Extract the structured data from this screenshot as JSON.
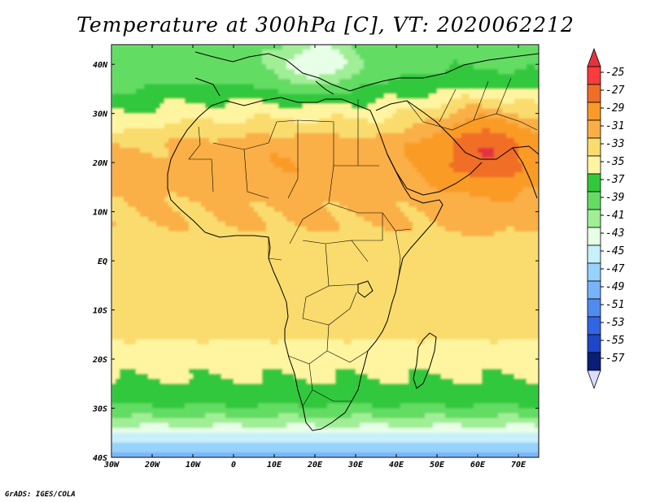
{
  "title": "Temperature at 300hPa [C], VT: 2020062212",
  "credit": "GrADS: IGES/COLA",
  "map": {
    "lon_labels": [
      "30W",
      "20W",
      "10W",
      "0",
      "10E",
      "20E",
      "30E",
      "40E",
      "50E",
      "60E",
      "70E"
    ],
    "lat_labels": [
      "40N",
      "30N",
      "20N",
      "10N",
      "EQ",
      "10S",
      "20S",
      "30S",
      "40S"
    ],
    "lon_range": [
      -30,
      75
    ],
    "lat_range": [
      -40,
      44
    ]
  },
  "colorbar": {
    "labels": [
      "-25",
      "-27",
      "-29",
      "-31",
      "-33",
      "-35",
      "-37",
      "-39",
      "-41",
      "-43",
      "-45",
      "-47",
      "-49",
      "-51",
      "-53",
      "-55",
      "-57"
    ],
    "colors": [
      "#fa3c3c",
      "#f06e28",
      "#fa9b28",
      "#faaf46",
      "#fadc6e",
      "#fff5a0",
      "#32c83c",
      "#64dc64",
      "#a0ee96",
      "#e6ffe6",
      "#c8f0fa",
      "#96d2fa",
      "#78b4fa",
      "#508cf0",
      "#3264e6",
      "#1e46c8",
      "#0a1e78"
    ],
    "top_arrow_color": "#e6323c",
    "bottom_arrow_color": "#dcdcff"
  },
  "chart_data": {
    "type": "heatmap",
    "title": "Temperature at 300hPa [C], VT: 2020062212",
    "xlabel": "",
    "ylabel": "",
    "xlim": [
      -30,
      75
    ],
    "ylim": [
      -40,
      44
    ],
    "unit": "C",
    "levels": [
      -57,
      -55,
      -53,
      -51,
      -49,
      -47,
      -45,
      -43,
      -41,
      -39,
      -37,
      -35,
      -33,
      -31,
      -29,
      -27,
      -25
    ],
    "zonal_profile": {
      "lat": [
        -40,
        -36,
        -32,
        -28,
        -24,
        -20,
        -16,
        -12,
        -8,
        -4,
        0,
        4,
        8,
        12,
        16,
        20,
        24,
        28,
        32,
        36,
        40,
        44
      ],
      "temp": [
        -48,
        -44,
        -39,
        -36,
        -35,
        -34,
        -33,
        -32,
        -32,
        -32,
        -32,
        -31.5,
        -31,
        -31,
        -30.5,
        -30.5,
        -31,
        -33,
        -35,
        -37,
        -38,
        -38
      ]
    },
    "warm_anomaly_center": {
      "lon": 62,
      "lat": 24,
      "temp": -25.5
    },
    "cold_pocket": {
      "lon": 20,
      "lat": 40,
      "temp": -41
    }
  }
}
